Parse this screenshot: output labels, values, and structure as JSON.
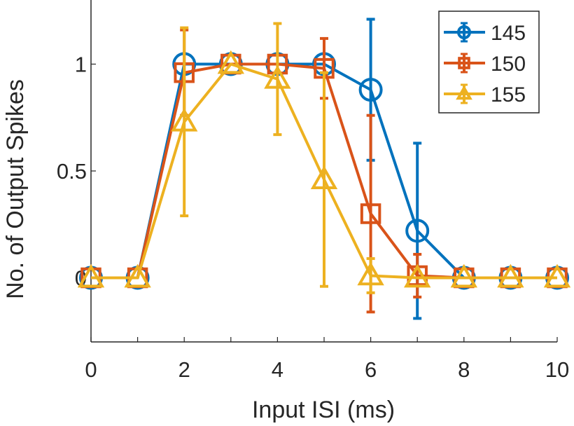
{
  "chart_data": {
    "type": "line",
    "title": "",
    "xlabel": "Input ISI (ms)",
    "ylabel": "No. of Output Spikes",
    "xlim": [
      0,
      10
    ],
    "ylim": [
      -0.3,
      1.3
    ],
    "xticks": [
      0,
      2,
      4,
      6,
      8,
      10
    ],
    "yticks": [
      0,
      0.5,
      1
    ],
    "ytick_labels": [
      "0",
      "0.5",
      "1"
    ],
    "grid": false,
    "legend": "top-right",
    "series": [
      {
        "name": "145",
        "color": "#0072BD",
        "marker": "circle",
        "x": [
          0,
          1,
          2,
          3,
          4,
          5,
          6,
          7,
          8,
          9,
          10
        ],
        "y": [
          0,
          0,
          1.0,
          1.0,
          1.0,
          1.0,
          0.88,
          0.22,
          0,
          0,
          0
        ],
        "err": [
          0,
          0,
          0,
          0,
          0,
          0,
          0.33,
          0.41,
          0,
          0,
          0
        ]
      },
      {
        "name": "150",
        "color": "#D95319",
        "marker": "square",
        "x": [
          0,
          1,
          2,
          3,
          4,
          5,
          6,
          7,
          8,
          9,
          10
        ],
        "y": [
          0,
          0,
          0.96,
          1.0,
          1.0,
          0.98,
          0.3,
          0.01,
          0,
          0,
          0
        ],
        "err": [
          0,
          0,
          0.2,
          0,
          0,
          0.14,
          0.46,
          0.1,
          0,
          0,
          0
        ]
      },
      {
        "name": "155",
        "color": "#EDB120",
        "marker": "triangle",
        "x": [
          0,
          1,
          2,
          3,
          4,
          5,
          6,
          7,
          8,
          9,
          10
        ],
        "y": [
          0,
          0,
          0.73,
          1.0,
          0.93,
          0.46,
          0.01,
          0,
          0,
          0,
          0
        ],
        "err": [
          0,
          0,
          0.44,
          0,
          0.26,
          0.5,
          0.08,
          0,
          0,
          0,
          0
        ]
      }
    ]
  }
}
